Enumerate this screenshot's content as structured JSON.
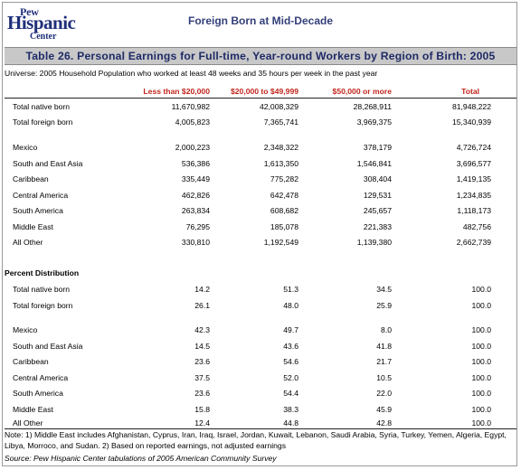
{
  "logo": {
    "line1": "Pew",
    "line2": "Hispanic",
    "line3": "Center"
  },
  "header_title": "Foreign Born at Mid-Decade",
  "table_title": "Table 26. Personal Earnings for Full-time, Year-round Workers by Region of Birth:   2005",
  "universe": "Universe: 2005 Household Population who worked at least 48 weeks and 35 hours per week in the past year",
  "columns": [
    "Less than $20,000",
    "$20,000 to $49,999",
    "$50,000 or more",
    "Total"
  ],
  "counts": {
    "totals": [
      {
        "label": "Total native born",
        "values": [
          "11,670,982",
          "42,008,329",
          "28,268,911",
          "81,948,222"
        ]
      },
      {
        "label": "Total foreign born",
        "values": [
          "4,005,823",
          "7,365,741",
          "3,969,375",
          "15,340,939"
        ]
      }
    ],
    "regions": [
      {
        "label": "Mexico",
        "values": [
          "2,000,223",
          "2,348,322",
          "378,179",
          "4,726,724"
        ]
      },
      {
        "label": "South and East Asia",
        "values": [
          "536,386",
          "1,613,350",
          "1,546,841",
          "3,696,577"
        ]
      },
      {
        "label": "Caribbean",
        "values": [
          "335,449",
          "775,282",
          "308,404",
          "1,419,135"
        ]
      },
      {
        "label": "Central America",
        "values": [
          "462,826",
          "642,478",
          "129,531",
          "1,234,835"
        ]
      },
      {
        "label": "South America",
        "values": [
          "263,834",
          "608,682",
          "245,657",
          "1,118,173"
        ]
      },
      {
        "label": "Middle East",
        "values": [
          "76,295",
          "185,078",
          "221,383",
          "482,756"
        ]
      },
      {
        "label": "All Other",
        "values": [
          "330,810",
          "1,192,549",
          "1,139,380",
          "2,662,739"
        ]
      }
    ]
  },
  "percent_section_label": "Percent Distribution",
  "percent": {
    "totals": [
      {
        "label": "Total native born",
        "values": [
          "14.2",
          "51.3",
          "34.5",
          "100.0"
        ]
      },
      {
        "label": "Total foreign born",
        "values": [
          "26.1",
          "48.0",
          "25.9",
          "100.0"
        ]
      }
    ],
    "regions": [
      {
        "label": "Mexico",
        "values": [
          "42.3",
          "49.7",
          "8.0",
          "100.0"
        ]
      },
      {
        "label": "South and East Asia",
        "values": [
          "14.5",
          "43.6",
          "41.8",
          "100.0"
        ]
      },
      {
        "label": "Caribbean",
        "values": [
          "23.6",
          "54.6",
          "21.7",
          "100.0"
        ]
      },
      {
        "label": "Central America",
        "values": [
          "37.5",
          "52.0",
          "10.5",
          "100.0"
        ]
      },
      {
        "label": "South America",
        "values": [
          "23.6",
          "54.4",
          "22.0",
          "100.0"
        ]
      },
      {
        "label": "Middle East",
        "values": [
          "15.8",
          "38.3",
          "45.9",
          "100.0"
        ]
      },
      {
        "label": "All Other",
        "values": [
          "12.4",
          "44.8",
          "42.8",
          "100.0"
        ]
      }
    ]
  },
  "note": "Note:  1) Middle East includes Afghanistan, Cyprus, Iran, Iraq, Israel, Jordan, Kuwait, Lebanon, Saudi Arabia, Syria, Turkey, Yemen, Algeria, Egypt, Libya, Morroco, and Sudan.  2) Based on reported earnings, not adjusted earnings",
  "source": "Source: Pew Hispanic Center tabulations of 2005 American Community Survey",
  "colors": {
    "header_text": "#34407a",
    "column_heads": "#c0241c",
    "banner_bg": "#c8c8c8",
    "logo": "#1f2f7a"
  }
}
